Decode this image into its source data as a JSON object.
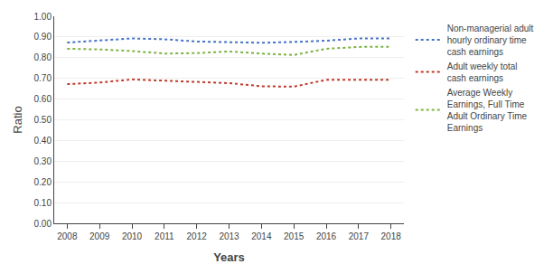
{
  "chart_data": {
    "type": "line",
    "xlabel": "Years",
    "ylabel": "Ratio",
    "x": [
      2008,
      2009,
      2010,
      2011,
      2012,
      2013,
      2014,
      2015,
      2016,
      2017,
      2018
    ],
    "series": [
      {
        "name": "Non-managerial adult\nhourly ordinary time\ncash earnings",
        "color": "#4472C4",
        "line_style": "dotted",
        "values": [
          0.873,
          0.882,
          0.893,
          0.889,
          0.878,
          0.875,
          0.872,
          0.876,
          0.882,
          0.893,
          0.893
        ]
      },
      {
        "name": "Adult weekly total\ncash earnings",
        "color": "#C0392B",
        "line_style": "dotted",
        "values": [
          0.672,
          0.68,
          0.695,
          0.69,
          0.685,
          0.677,
          0.662,
          0.66,
          0.693,
          0.693,
          0.693
        ]
      },
      {
        "name": "Average Weekly\nEarnings, Full Time\nAdult Ordinary Time\nEarnings",
        "color": "#7CB342",
        "line_style": "dotted",
        "values": [
          0.843,
          0.84,
          0.832,
          0.82,
          0.822,
          0.83,
          0.82,
          0.813,
          0.843,
          0.852,
          0.853
        ]
      }
    ],
    "xlim": [
      2007.6,
      2018.4
    ],
    "xticks": [
      2008,
      2009,
      2010,
      2011,
      2012,
      2013,
      2014,
      2015,
      2016,
      2017,
      2018
    ],
    "ylim": [
      0.0,
      1.0
    ],
    "yticks": [
      {
        "value": 0.0,
        "label": "0.00"
      },
      {
        "value": 0.1,
        "label": "0.10"
      },
      {
        "value": 0.2,
        "label": "0.20"
      },
      {
        "value": 0.3,
        "label": "0.30"
      },
      {
        "value": 0.4,
        "label": "0.40"
      },
      {
        "value": 0.5,
        "label": "0.50"
      },
      {
        "value": 0.6,
        "label": "0.60"
      },
      {
        "value": 0.7,
        "label": "0.70"
      },
      {
        "value": 0.8,
        "label": "0.80"
      },
      {
        "value": 0.9,
        "label": "0.90"
      },
      {
        "value": 1.0,
        "label": "1.00"
      }
    ],
    "grid": "y",
    "legend": "right"
  }
}
